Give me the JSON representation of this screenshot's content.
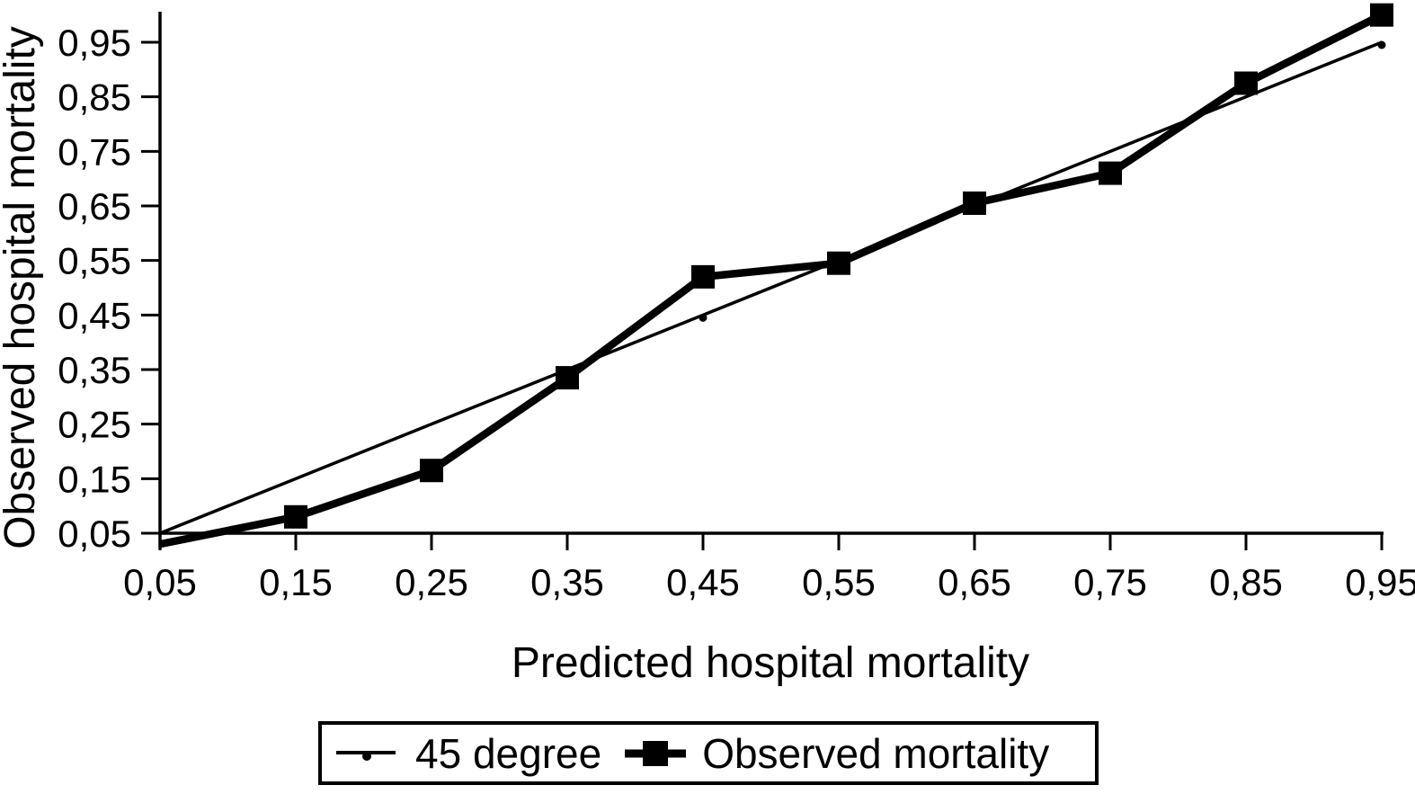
{
  "chart_data": {
    "type": "line",
    "title": "",
    "xlabel": "Predicted hospital mortality",
    "ylabel": "Observed hospital mortality",
    "xlim": [
      0.05,
      0.95
    ],
    "ylim": [
      0.05,
      0.95
    ],
    "grid": false,
    "decimal_separator": ",",
    "x": [
      0.05,
      0.15,
      0.25,
      0.35,
      0.45,
      0.55,
      0.65,
      0.75,
      0.85,
      0.95
    ],
    "tick_labels": [
      "0,05",
      "0,15",
      "0,25",
      "0,35",
      "0,45",
      "0,55",
      "0,65",
      "0,75",
      "0,85",
      "0,95"
    ],
    "series": [
      {
        "name": "45 degree",
        "line_style": "thin",
        "marker": "small-dot",
        "values": [
          0.05,
          0.15,
          0.25,
          0.35,
          0.45,
          0.55,
          0.65,
          0.75,
          0.85,
          0.95
        ]
      },
      {
        "name": "Observed mortality",
        "line_style": "thick",
        "marker": "filled-square",
        "values": [
          0.03,
          0.08,
          0.165,
          0.335,
          0.52,
          0.545,
          0.655,
          0.71,
          0.875,
          1.0
        ]
      }
    ],
    "legend": {
      "position": "bottom",
      "border": true,
      "entries": [
        "45 degree",
        "Observed mortality"
      ]
    },
    "layout": {
      "dot_marker_x": [
        0.45,
        0.95
      ],
      "first_observed_point_has_no_marker": true
    },
    "colors": {
      "foreground": "#000000",
      "background": "#ffffff"
    }
  }
}
